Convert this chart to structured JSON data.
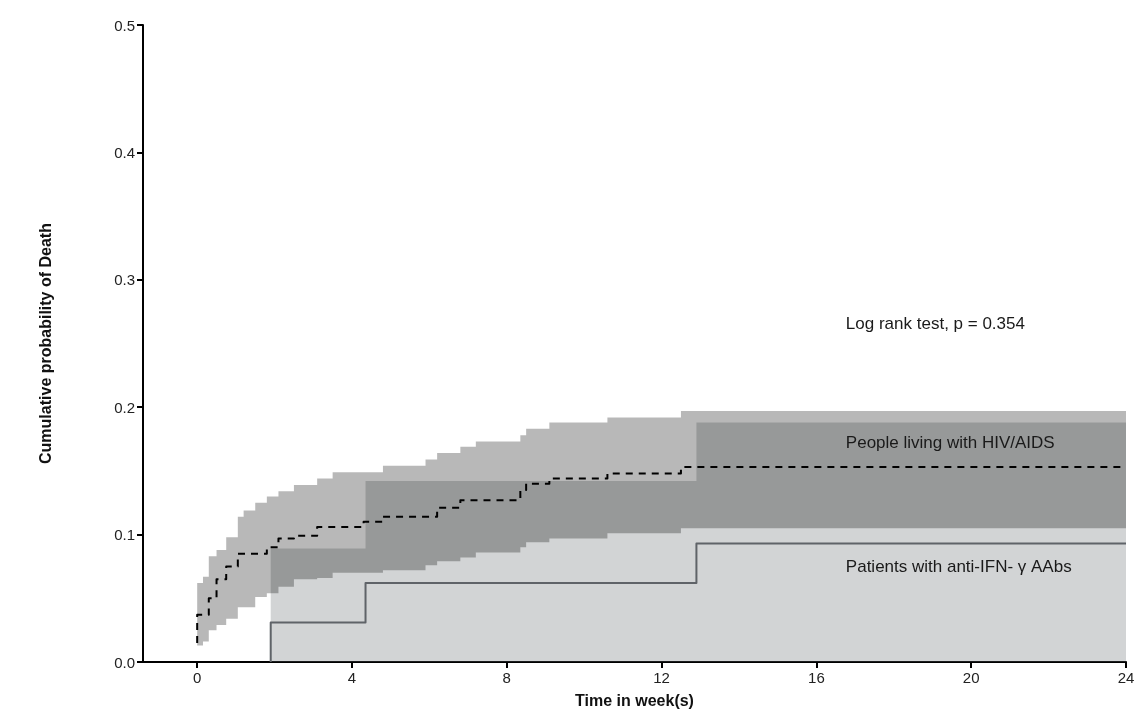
{
  "chart_data": {
    "type": "step",
    "xlabel": "Time in week(s)",
    "ylabel": "Cumulative probability of Death",
    "annotations": [
      "Log rank test, p = 0.354"
    ],
    "xlim": [
      -1.4,
      24
    ],
    "xticks": [
      0,
      4,
      8,
      12,
      16,
      20,
      24
    ],
    "ylim": [
      0,
      0.5
    ],
    "yticks": [
      {
        "value": 0,
        "label": "0.0"
      },
      0.1,
      0.2,
      0.3,
      0.4,
      0.5
    ],
    "grid": false,
    "legend": false,
    "marker": "none",
    "series": [
      {
        "name": "People living with HIV/AIDS",
        "color": "#000000",
        "line_style": "dashed",
        "x": [
          0,
          0,
          0.15,
          0.3,
          0.5,
          0.75,
          1.05,
          1.2,
          1.5,
          1.8,
          2.1,
          2.5,
          3.1,
          3.5,
          4.3,
          4.8,
          5.9,
          6.2,
          6.8,
          7.2,
          8.35,
          8.5,
          9.1,
          10.6,
          12.5,
          24
        ],
        "values": [
          0.015,
          0.037,
          0.037,
          0.05,
          0.065,
          0.075,
          0.085,
          0.085,
          0.085,
          0.09,
          0.097,
          0.099,
          0.106,
          0.106,
          0.11,
          0.114,
          0.114,
          0.121,
          0.127,
          0.127,
          0.135,
          0.14,
          0.144,
          0.148,
          0.153,
          0.153
        ],
        "lower": [
          0.013,
          0.013,
          0.016,
          0.025,
          0.029,
          0.034,
          0.043,
          0.043,
          0.051,
          0.054,
          0.059,
          0.065,
          0.066,
          0.07,
          0.07,
          0.072,
          0.076,
          0.079,
          0.082,
          0.086,
          0.09,
          0.094,
          0.097,
          0.101,
          0.105,
          0.105
        ],
        "upper": [
          0.062,
          0.062,
          0.067,
          0.083,
          0.088,
          0.098,
          0.114,
          0.119,
          0.125,
          0.13,
          0.134,
          0.139,
          0.144,
          0.149,
          0.149,
          0.154,
          0.159,
          0.164,
          0.169,
          0.173,
          0.178,
          0.183,
          0.188,
          0.192,
          0.197,
          0.197
        ]
      },
      {
        "name": "Patients with anti-IFN- γ AAbs",
        "color": "#5f6368",
        "line_style": "solid",
        "x": [
          1.9,
          1.9,
          4.35,
          12.9,
          24
        ],
        "values": [
          0,
          0.031,
          0.062,
          0.093,
          0.093
        ],
        "lower": [
          0,
          0,
          0,
          0,
          0
        ],
        "upper": [
          0.089,
          0.089,
          0.142,
          0.188,
          0.188
        ]
      }
    ]
  }
}
